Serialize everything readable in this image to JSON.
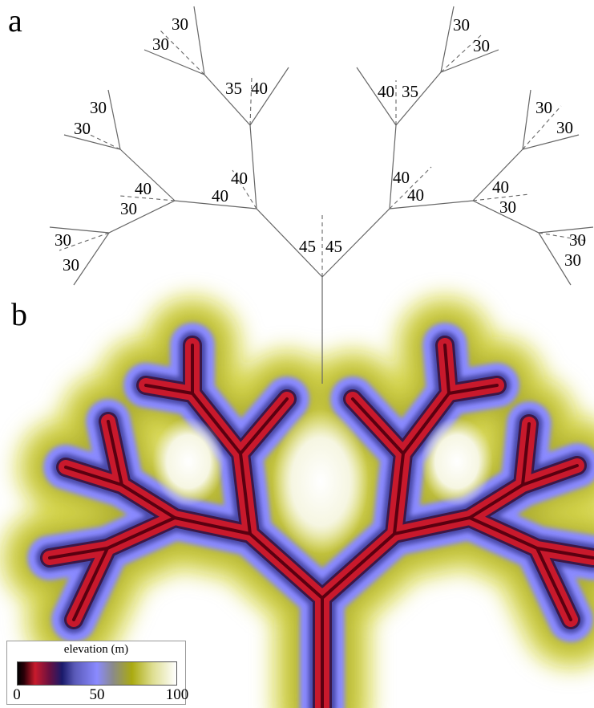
{
  "panels": {
    "a": "a",
    "b": "b"
  },
  "angles": {
    "root_left": "45",
    "root_right": "45",
    "l1_left_a": "40",
    "l1_left_b": "40",
    "l1_right_a": "40",
    "l1_right_b": "40",
    "l2_ll_a": "40",
    "l2_ll_b": "30",
    "l2_lr_a": "35",
    "l2_lr_b": "40",
    "l2_rl_a": "40",
    "l2_rl_b": "35",
    "l2_rr_a": "40",
    "l2_rr_b": "30",
    "tip_lll_a": "30",
    "tip_lll_b": "30",
    "tip_llr_a": "30",
    "tip_llr_b": "30",
    "tip_lrr_a": "30",
    "tip_lrr_b": "30",
    "tip_rll_a": "30",
    "tip_rll_b": "30",
    "tip_rrl_a": "30",
    "tip_rrl_b": "30",
    "tip_rrr_a": "30",
    "tip_rrr_b": "30"
  },
  "legend": {
    "title": "elevation (m)",
    "ticks": [
      {
        "value": 0,
        "label": "0"
      },
      {
        "value": 50,
        "label": "50"
      },
      {
        "value": 100,
        "label": "100"
      }
    ],
    "colormap": [
      {
        "stop": 0,
        "color": "#000000"
      },
      {
        "stop": 0.04,
        "color": "#2a0008"
      },
      {
        "stop": 0.11,
        "color": "#c81a2c"
      },
      {
        "stop": 0.2,
        "color": "#6a1040"
      },
      {
        "stop": 0.28,
        "color": "#1a1a6a"
      },
      {
        "stop": 0.36,
        "color": "#5a5ab8"
      },
      {
        "stop": 0.5,
        "color": "#8a8aff"
      },
      {
        "stop": 0.6,
        "color": "#8a8a8a"
      },
      {
        "stop": 0.72,
        "color": "#aaaa10"
      },
      {
        "stop": 0.85,
        "color": "#dede90"
      },
      {
        "stop": 1,
        "color": "#ffffff"
      }
    ],
    "range": [
      0,
      100
    ]
  }
}
